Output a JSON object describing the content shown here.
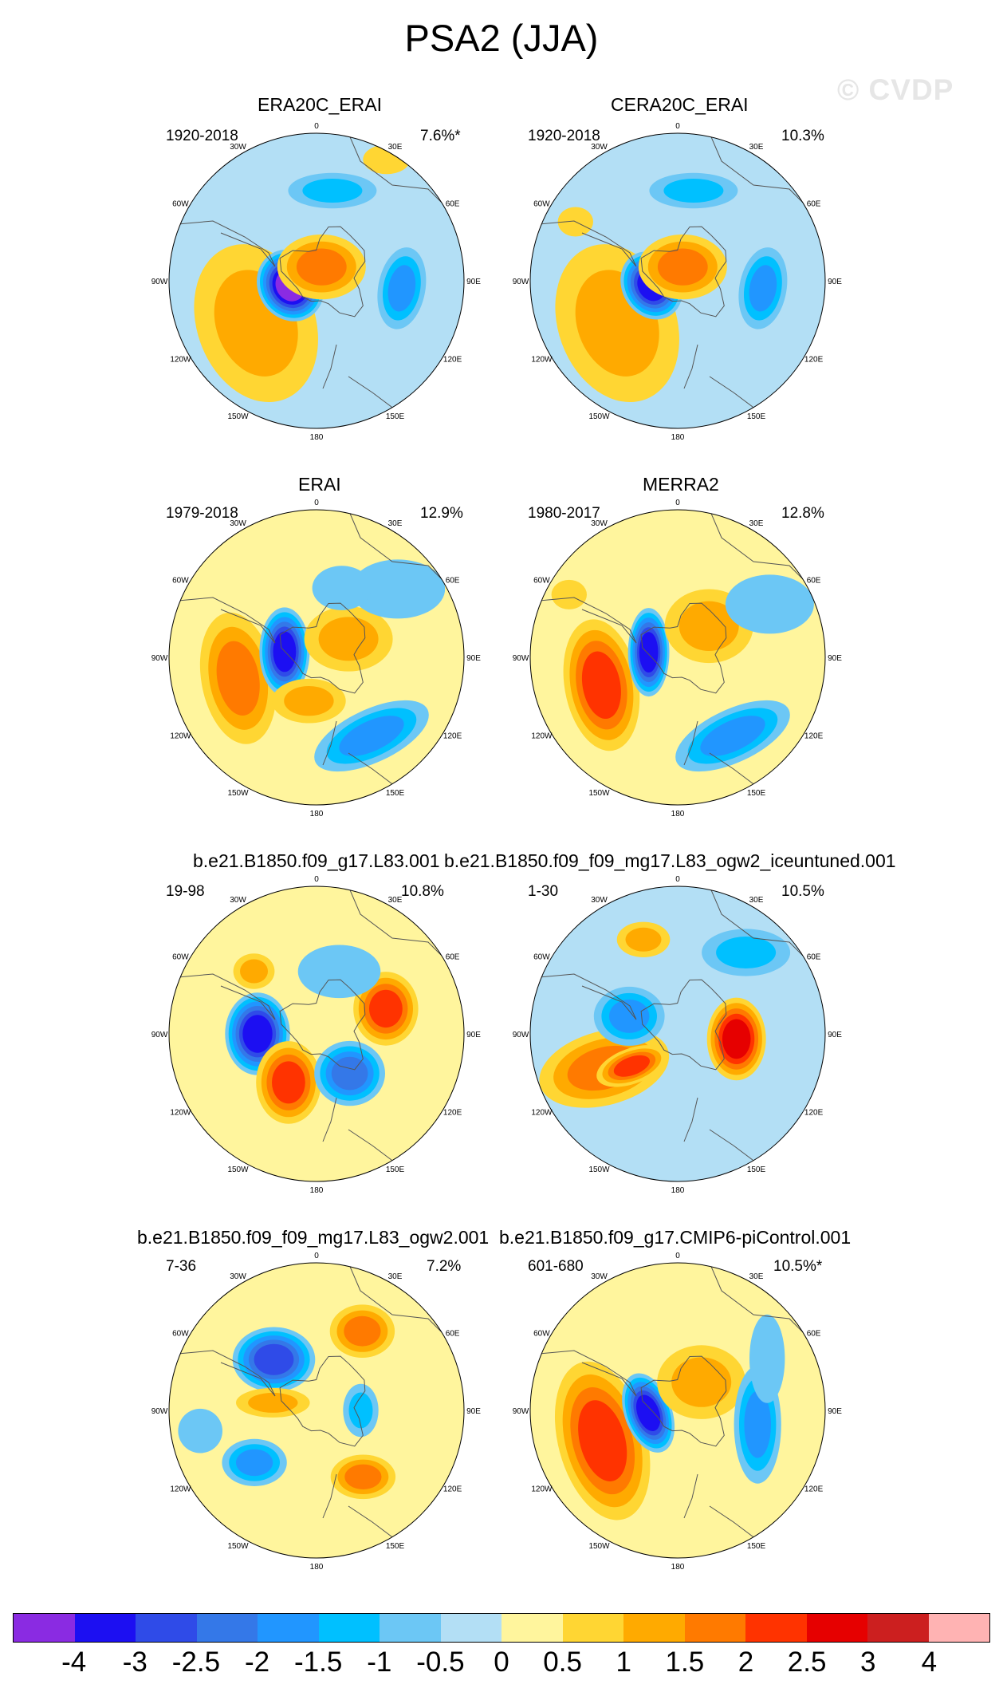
{
  "title": "PSA2 (JJA)",
  "watermark": "© CVDP",
  "lon_labels": [
    "0",
    "30E",
    "60E",
    "90E",
    "120E",
    "150E",
    "180",
    "150W",
    "120W",
    "90W",
    "60W",
    "30W"
  ],
  "panels": [
    {
      "title": "ERA20C_ERAI",
      "years": "1920-2018",
      "pct": "7.6%*"
    },
    {
      "title": "CERA20C_ERAI",
      "years": "1920-2018",
      "pct": "10.3%"
    },
    {
      "title": "ERAI",
      "years": "1979-2018",
      "pct": "12.9%"
    },
    {
      "title": "MERRA2",
      "years": "1980-2017",
      "pct": "12.8%"
    },
    {
      "title": "b.e21.B1850.f09_g17.L83.001",
      "years": "19-98",
      "pct": "10.8%"
    },
    {
      "title": "b.e21.B1850.f09_f09_mg17.L83_ogw2_iceuntuned.001",
      "years": "1-30",
      "pct": "10.5%"
    },
    {
      "title": "b.e21.B1850.f09_f09_mg17.L83_ogw2.001",
      "years": "7-36",
      "pct": "7.2%"
    },
    {
      "title": "b.e21.B1850.f09_g17.CMIP6-piControl.001",
      "years": "601-680",
      "pct": "10.5%*"
    }
  ],
  "colorbar": {
    "colors": [
      "#8a2be2",
      "#1c0ff2",
      "#2f4be8",
      "#3478e8",
      "#2196ff",
      "#00c0ff",
      "#6cc7f5",
      "#b3dff5",
      "#fff59d",
      "#ffd633",
      "#ffaa00",
      "#ff7a00",
      "#ff3300",
      "#e60000",
      "#cc1f1f",
      "#ffb3b3"
    ],
    "labels": [
      "-4",
      "-3",
      "-2.5",
      "-2",
      "-1.5",
      "-1",
      "-0.5",
      "0",
      "0.5",
      "1",
      "1.5",
      "2",
      "2.5",
      "3",
      "4"
    ]
  },
  "map_fields": [
    {
      "base": "#b3dff5",
      "blobs": [
        {
          "lon": -125,
          "r": 0.5,
          "dx": 0.4,
          "dy": 0.55,
          "rot": -20,
          "v": 1
        },
        {
          "lon": -100,
          "r": 0.18,
          "dx": 0.22,
          "dy": 0.25,
          "rot": -30,
          "v": -4
        },
        {
          "lon": 20,
          "r": 0.1,
          "dx": 0.3,
          "dy": 0.22,
          "rot": 0,
          "v": 1.5
        },
        {
          "lon": 95,
          "r": 0.58,
          "dx": 0.16,
          "dy": 0.28,
          "rot": 10,
          "v": -1.5
        },
        {
          "lon": 10,
          "r": 0.62,
          "dx": 0.3,
          "dy": 0.12,
          "rot": 0,
          "v": -1
        },
        {
          "lon": 30,
          "r": 0.95,
          "dx": 0.16,
          "dy": 0.1,
          "rot": 0,
          "v": 0.5
        }
      ]
    },
    {
      "base": "#b3dff5",
      "blobs": [
        {
          "lon": -125,
          "r": 0.5,
          "dx": 0.4,
          "dy": 0.55,
          "rot": -20,
          "v": 1
        },
        {
          "lon": -100,
          "r": 0.18,
          "dx": 0.2,
          "dy": 0.24,
          "rot": -30,
          "v": -3
        },
        {
          "lon": 20,
          "r": 0.1,
          "dx": 0.3,
          "dy": 0.22,
          "rot": 0,
          "v": 1.5
        },
        {
          "lon": 95,
          "r": 0.58,
          "dx": 0.16,
          "dy": 0.28,
          "rot": 10,
          "v": -1.5
        },
        {
          "lon": 10,
          "r": 0.62,
          "dx": 0.3,
          "dy": 0.12,
          "rot": 0,
          "v": -1
        },
        {
          "lon": -60,
          "r": 0.8,
          "dx": 0.12,
          "dy": 0.1,
          "rot": 0,
          "v": 0.5
        }
      ]
    },
    {
      "base": "#fff59d",
      "blobs": [
        {
          "lon": -105,
          "r": 0.55,
          "dx": 0.25,
          "dy": 0.45,
          "rot": -10,
          "v": 1.5
        },
        {
          "lon": -80,
          "r": 0.22,
          "dx": 0.17,
          "dy": 0.3,
          "rot": 0,
          "v": -3
        },
        {
          "lon": 60,
          "r": 0.25,
          "dx": 0.3,
          "dy": 0.22,
          "rot": 0,
          "v": 1
        },
        {
          "lon": -170,
          "r": 0.3,
          "dx": 0.25,
          "dy": 0.15,
          "rot": 0,
          "v": 1
        },
        {
          "lon": 145,
          "r": 0.65,
          "dx": 0.42,
          "dy": 0.18,
          "rot": -25,
          "v": -1.5
        },
        {
          "lon": 50,
          "r": 0.72,
          "dx": 0.32,
          "dy": 0.2,
          "rot": 0,
          "v": -0.5
        },
        {
          "lon": 20,
          "r": 0.5,
          "dx": 0.2,
          "dy": 0.15,
          "rot": 0,
          "v": -0.5
        }
      ]
    },
    {
      "base": "#fff59d",
      "blobs": [
        {
          "lon": -110,
          "r": 0.55,
          "dx": 0.25,
          "dy": 0.45,
          "rot": -10,
          "v": 2
        },
        {
          "lon": -80,
          "r": 0.2,
          "dx": 0.14,
          "dy": 0.3,
          "rot": 0,
          "v": -3
        },
        {
          "lon": 45,
          "r": 0.3,
          "dx": 0.3,
          "dy": 0.25,
          "rot": 0,
          "v": 1
        },
        {
          "lon": 145,
          "r": 0.65,
          "dx": 0.42,
          "dy": 0.18,
          "rot": -25,
          "v": -1.5
        },
        {
          "lon": 60,
          "r": 0.72,
          "dx": 0.3,
          "dy": 0.2,
          "rot": 0,
          "v": -0.5
        },
        {
          "lon": -60,
          "r": 0.85,
          "dx": 0.12,
          "dy": 0.1,
          "rot": 0,
          "v": 0.5
        }
      ]
    },
    {
      "base": "#fff59d",
      "blobs": [
        {
          "lon": -90,
          "r": 0.4,
          "dx": 0.22,
          "dy": 0.28,
          "rot": 0,
          "v": -3
        },
        {
          "lon": -150,
          "r": 0.38,
          "dx": 0.22,
          "dy": 0.28,
          "rot": 0,
          "v": 2
        },
        {
          "lon": 140,
          "r": 0.35,
          "dx": 0.24,
          "dy": 0.22,
          "rot": 0,
          "v": -2
        },
        {
          "lon": 70,
          "r": 0.5,
          "dx": 0.22,
          "dy": 0.25,
          "rot": 0,
          "v": 2
        },
        {
          "lon": -45,
          "r": 0.6,
          "dx": 0.14,
          "dy": 0.12,
          "rot": 0,
          "v": 1
        },
        {
          "lon": 20,
          "r": 0.45,
          "dx": 0.28,
          "dy": 0.18,
          "rot": 0,
          "v": -0.5
        }
      ]
    },
    {
      "base": "#b3dff5",
      "blobs": [
        {
          "lon": -115,
          "r": 0.55,
          "dx": 0.45,
          "dy": 0.25,
          "rot": -15,
          "v": 1.5
        },
        {
          "lon": -125,
          "r": 0.38,
          "dx": 0.25,
          "dy": 0.12,
          "rot": -20,
          "v": 2
        },
        {
          "lon": 95,
          "r": 0.4,
          "dx": 0.2,
          "dy": 0.28,
          "rot": 0,
          "v": 2.5
        },
        {
          "lon": -70,
          "r": 0.35,
          "dx": 0.24,
          "dy": 0.2,
          "rot": 0,
          "v": -1.5
        },
        {
          "lon": -20,
          "r": 0.68,
          "dx": 0.18,
          "dy": 0.12,
          "rot": 0,
          "v": 1
        },
        {
          "lon": 40,
          "r": 0.72,
          "dx": 0.3,
          "dy": 0.16,
          "rot": 0,
          "v": -1
        }
      ]
    },
    {
      "base": "#fff59d",
      "blobs": [
        {
          "lon": -40,
          "r": 0.45,
          "dx": 0.28,
          "dy": 0.22,
          "rot": 0,
          "v": -2.5
        },
        {
          "lon": 30,
          "r": 0.62,
          "dx": 0.22,
          "dy": 0.18,
          "rot": 0,
          "v": 1.5
        },
        {
          "lon": 145,
          "r": 0.55,
          "dx": 0.22,
          "dy": 0.15,
          "rot": 0,
          "v": 1.5
        },
        {
          "lon": -130,
          "r": 0.55,
          "dx": 0.22,
          "dy": 0.16,
          "rot": 0,
          "v": -1.5
        },
        {
          "lon": -80,
          "r": 0.3,
          "dx": 0.25,
          "dy": 0.1,
          "rot": 0,
          "v": 1
        },
        {
          "lon": 90,
          "r": 0.3,
          "dx": 0.12,
          "dy": 0.18,
          "rot": 0,
          "v": -1
        },
        {
          "lon": -100,
          "r": 0.8,
          "dx": 0.15,
          "dy": 0.15,
          "rot": 0,
          "v": -0.5
        }
      ]
    },
    {
      "base": "#fff59d",
      "blobs": [
        {
          "lon": -112,
          "r": 0.55,
          "dx": 0.3,
          "dy": 0.55,
          "rot": -15,
          "v": 2
        },
        {
          "lon": -95,
          "r": 0.2,
          "dx": 0.16,
          "dy": 0.28,
          "rot": -20,
          "v": -3
        },
        {
          "lon": 40,
          "r": 0.25,
          "dx": 0.3,
          "dy": 0.25,
          "rot": 0,
          "v": 1
        },
        {
          "lon": 100,
          "r": 0.55,
          "dx": 0.16,
          "dy": 0.4,
          "rot": 0,
          "v": -1.5
        },
        {
          "lon": 60,
          "r": 0.7,
          "dx": 0.12,
          "dy": 0.3,
          "rot": 0,
          "v": -0.5
        }
      ]
    }
  ]
}
